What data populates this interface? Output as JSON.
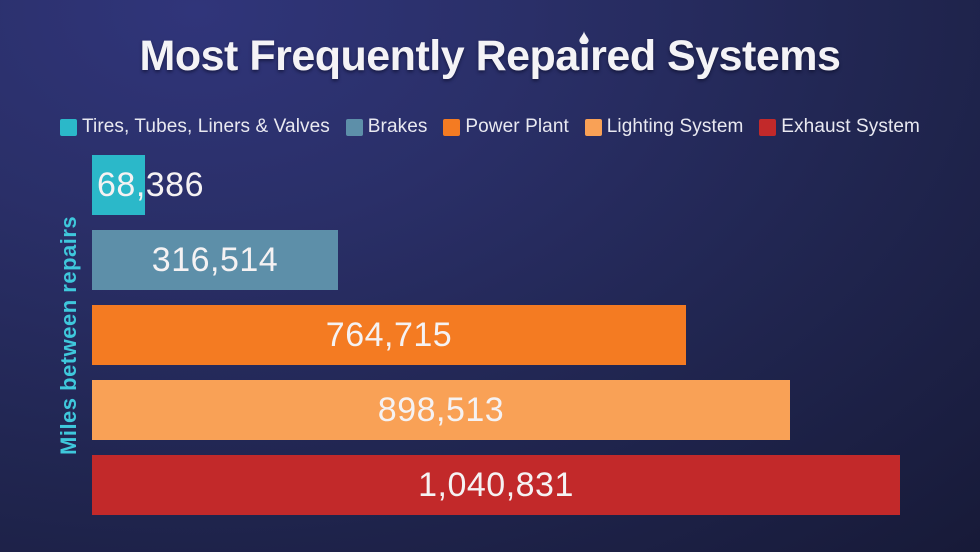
{
  "title_parts": {
    "pre": "Most Frequently Repa",
    "i": "ı",
    "post": "red Systems"
  },
  "chart_data": {
    "type": "bar",
    "orientation": "horizontal",
    "title": "Most Frequently Repaired Systems",
    "ylabel": "Miles between repairs",
    "xlabel": "",
    "categories": [
      "Tires, Tubes, Liners & Valves",
      "Brakes",
      "Power Plant",
      "Lighting System",
      "Exhaust System"
    ],
    "values": [
      68386,
      316514,
      764715,
      898513,
      1040831
    ],
    "value_labels": [
      "68,386",
      "316,514",
      "764,715",
      "898,513",
      "1,040,831"
    ],
    "colors": [
      "#2bb8c9",
      "#5d8fa9",
      "#f47b22",
      "#f9a156",
      "#c2292a"
    ],
    "xlim": [
      0,
      1040831
    ],
    "grid": false,
    "legend_position": "top",
    "background_colors": [
      "#2f3476",
      "#131528"
    ],
    "title_color": "#f4f3f6",
    "value_label_color": "#f5f2f3",
    "axis_label_color": "#3fc8dc",
    "legend_text_color": "#e9e9f1"
  }
}
